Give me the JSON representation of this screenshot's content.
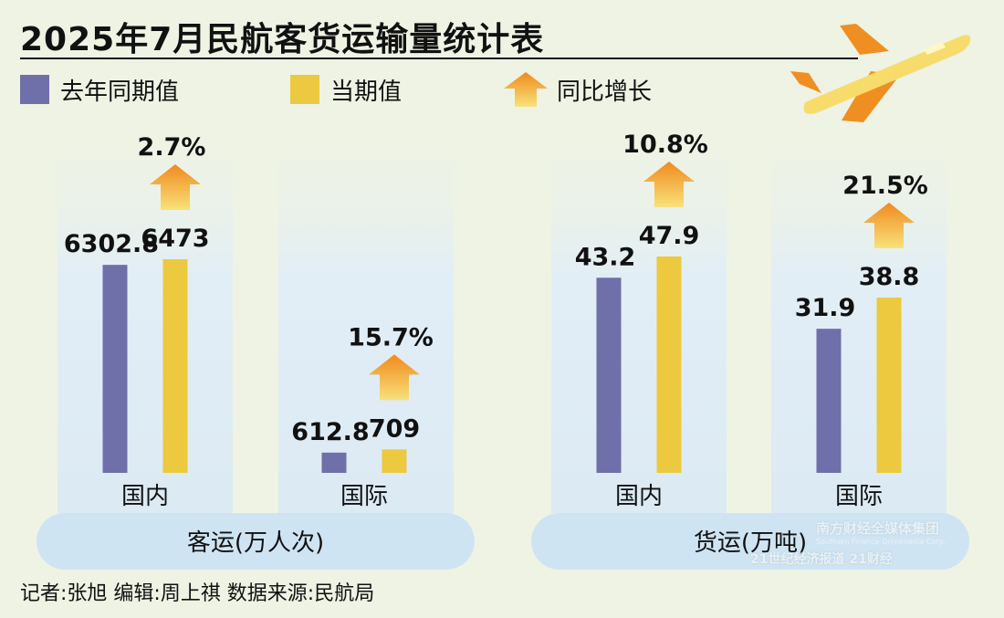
{
  "title": "2025年7月民航客货运输量统计表",
  "legend": {
    "last_year": "去年同期值",
    "current": "当期值",
    "growth": "同比增长"
  },
  "colors": {
    "last_year": "#6f6faa",
    "current": "#ecc93e",
    "arrow_top": "#f08a1e",
    "arrow_bottom": "#f8e27a",
    "panel": "#e4eff5",
    "pill": "#cfe4f2",
    "background": "#eef3e4"
  },
  "icons": {
    "plane": "airplane-icon",
    "arrow": "up-arrow-icon"
  },
  "chart_data": {
    "type": "bar",
    "groups": [
      {
        "label": "客运(万人次)",
        "categories": [
          "国内",
          "国际"
        ],
        "series": [
          {
            "name": "去年同期值",
            "values": [
              6302.8,
              612.8
            ],
            "labels": [
              "6302.8",
              "612.8"
            ]
          },
          {
            "name": "当期值",
            "values": [
              6473,
              709
            ],
            "labels": [
              "6473",
              "709"
            ]
          }
        ],
        "growth": [
          "2.7%",
          "15.7%"
        ]
      },
      {
        "label": "货运(万吨)",
        "categories": [
          "国内",
          "国际"
        ],
        "series": [
          {
            "name": "去年同期值",
            "values": [
              43.2,
              31.9
            ],
            "labels": [
              "43.2",
              "31.9"
            ]
          },
          {
            "name": "当期值",
            "values": [
              47.9,
              38.8
            ],
            "labels": [
              "47.9",
              "38.8"
            ]
          }
        ],
        "growth": [
          "10.8%",
          "21.5%"
        ]
      }
    ]
  },
  "footer": "记者:张旭   编辑:周上祺   数据来源:民航局",
  "watermark": {
    "line1": "南方财经全媒体集团",
    "line2": "Southern Finance Omnimedia Corp.",
    "line3": "21世纪经济报道  21财经"
  }
}
